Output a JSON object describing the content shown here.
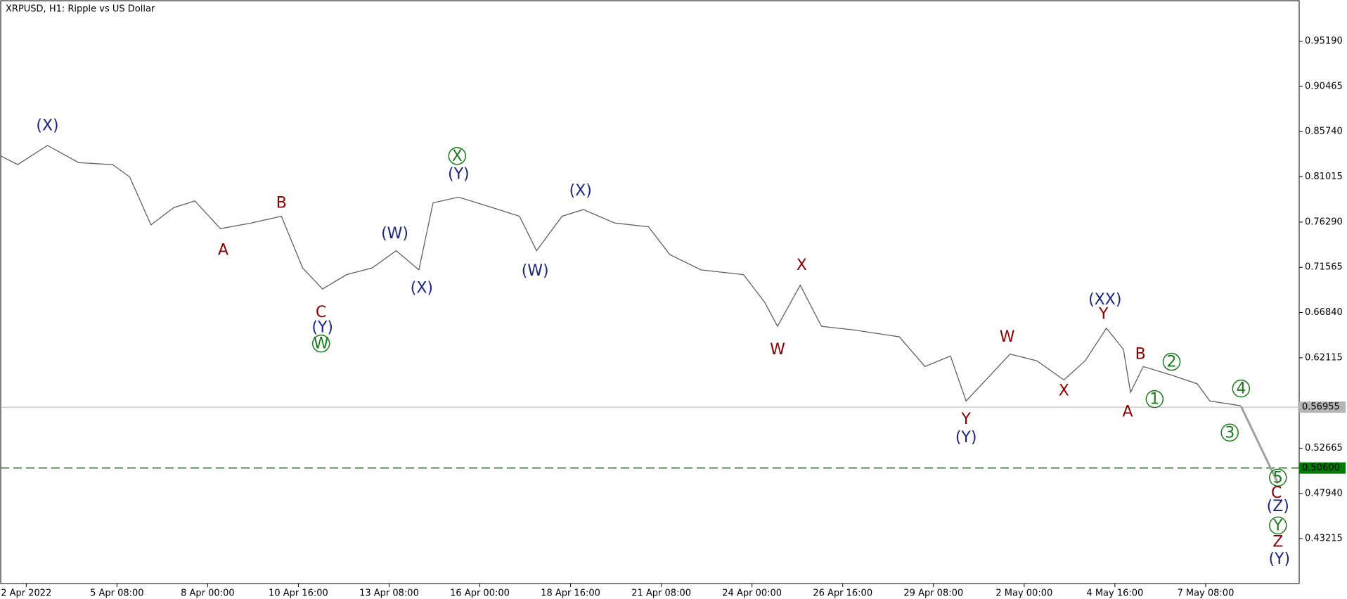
{
  "chart_data": {
    "type": "line",
    "title": "XRPUSD, H1:  Ripple vs US Dollar",
    "x": [
      -18,
      -6,
      15,
      37,
      61,
      73,
      88,
      104,
      119,
      137,
      159,
      180,
      195,
      209,
      226,
      244,
      261,
      277,
      287,
      305,
      329,
      348,
      360,
      378,
      393,
      415,
      439,
      454,
      476,
      506,
      521,
      530,
      546,
      561,
      585,
      616,
      634,
      652,
      663,
      677,
      694,
      713,
      732,
      747,
      762,
      774,
      779,
      788,
      808,
      826,
      835,
      857
    ],
    "values": [
      0.832,
      0.823,
      0.843,
      0.825,
      0.823,
      0.81,
      0.76,
      0.778,
      0.785,
      0.756,
      0.762,
      0.769,
      0.715,
      0.693,
      0.708,
      0.715,
      0.733,
      0.713,
      0.783,
      0.789,
      0.778,
      0.769,
      0.733,
      0.769,
      0.776,
      0.762,
      0.758,
      0.729,
      0.713,
      0.708,
      0.679,
      0.654,
      0.697,
      0.654,
      0.65,
      0.643,
      0.612,
      0.623,
      0.576,
      0.598,
      0.625,
      0.618,
      0.598,
      0.618,
      0.652,
      0.63,
      0.585,
      0.612,
      0.603,
      0.594,
      0.576,
      0.571
    ],
    "color": "#606060",
    "projection": {
      "x": [
        857,
        883
      ],
      "values": [
        0.5704,
        0.49
      ],
      "color": "#a0a0a0"
    },
    "xlim": [
      -18,
      898
    ],
    "ylim": [
      0.3853,
      0.9942
    ],
    "xticks": [
      {
        "value": 0,
        "label": "2 Apr 2022"
      },
      {
        "value": 64,
        "label": "5 Apr 08:00"
      },
      {
        "value": 128,
        "label": "8 Apr 00:00"
      },
      {
        "value": 192,
        "label": "10 Apr 16:00"
      },
      {
        "value": 256,
        "label": "13 Apr 08:00"
      },
      {
        "value": 320,
        "label": "16 Apr 00:00"
      },
      {
        "value": 384,
        "label": "18 Apr 16:00"
      },
      {
        "value": 448,
        "label": "21 Apr 08:00"
      },
      {
        "value": 512,
        "label": "24 Apr 00:00"
      },
      {
        "value": 576,
        "label": "26 Apr 16:00"
      },
      {
        "value": 640,
        "label": "29 Apr 08:00"
      },
      {
        "value": 704,
        "label": "2 May 00:00"
      },
      {
        "value": 768,
        "label": "4 May 16:00"
      },
      {
        "value": 832,
        "label": "7 May 08:00"
      }
    ],
    "yticks": [
      {
        "value": 0.9519,
        "label": "0.95190"
      },
      {
        "value": 0.90465,
        "label": "0.90465"
      },
      {
        "value": 0.8574,
        "label": "0.85740"
      },
      {
        "value": 0.81015,
        "label": "0.81015"
      },
      {
        "value": 0.7629,
        "label": "0.76290"
      },
      {
        "value": 0.71565,
        "label": "0.71565"
      },
      {
        "value": 0.6684,
        "label": "0.66840"
      },
      {
        "value": 0.62115,
        "label": "0.62115"
      },
      {
        "value": 0.52665,
        "label": "0.52665"
      },
      {
        "value": 0.4794,
        "label": "0.47940"
      },
      {
        "value": 0.43215,
        "label": "0.43215"
      }
    ],
    "hlines": [
      {
        "value": 0.56955,
        "label": "0.56955",
        "color": "#b4b4b4",
        "dashed": false
      },
      {
        "value": 0.506,
        "label": "0.50600",
        "color": "#007a00",
        "dashed": true
      }
    ],
    "annotations": [
      {
        "text": "(X)",
        "x": 15,
        "y": 0.864,
        "color": "#1a237e",
        "circled": false
      },
      {
        "text": "B",
        "x": 180,
        "y": 0.783,
        "color": "#8b0000",
        "circled": false
      },
      {
        "text": "A",
        "x": 139,
        "y": 0.734,
        "color": "#8b0000",
        "circled": false
      },
      {
        "text": "C",
        "x": 208,
        "y": 0.669,
        "color": "#8b0000",
        "circled": false
      },
      {
        "text": "(Y)",
        "x": 209,
        "y": 0.653,
        "color": "#1a237e",
        "circled": false
      },
      {
        "text": "W",
        "x": 208,
        "y": 0.636,
        "color": "#1b7a1b",
        "circled": true
      },
      {
        "text": "(W)",
        "x": 260,
        "y": 0.751,
        "color": "#1a237e",
        "circled": false
      },
      {
        "text": "(X)",
        "x": 279,
        "y": 0.694,
        "color": "#1a237e",
        "circled": false
      },
      {
        "text": "X",
        "x": 304,
        "y": 0.832,
        "color": "#1b7a1b",
        "circled": true
      },
      {
        "text": "(Y)",
        "x": 305,
        "y": 0.813,
        "color": "#1a237e",
        "circled": false
      },
      {
        "text": "(X)",
        "x": 391,
        "y": 0.796,
        "color": "#1a237e",
        "circled": false
      },
      {
        "text": "(W)",
        "x": 359,
        "y": 0.712,
        "color": "#1a237e",
        "circled": false
      },
      {
        "text": "X",
        "x": 547,
        "y": 0.718,
        "color": "#8b0000",
        "circled": false
      },
      {
        "text": "W",
        "x": 530,
        "y": 0.63,
        "color": "#8b0000",
        "circled": false
      },
      {
        "text": "Y",
        "x": 663,
        "y": 0.557,
        "color": "#8b0000",
        "circled": false
      },
      {
        "text": "(Y)",
        "x": 663,
        "y": 0.538,
        "color": "#1a237e",
        "circled": false
      },
      {
        "text": "W",
        "x": 692,
        "y": 0.643,
        "color": "#8b0000",
        "circled": false
      },
      {
        "text": "X",
        "x": 732,
        "y": 0.587,
        "color": "#8b0000",
        "circled": false
      },
      {
        "text": "(XX)",
        "x": 761,
        "y": 0.682,
        "color": "#1a237e",
        "circled": false
      },
      {
        "text": "Y",
        "x": 760,
        "y": 0.667,
        "color": "#8b0000",
        "circled": false
      },
      {
        "text": "B",
        "x": 786,
        "y": 0.625,
        "color": "#8b0000",
        "circled": false
      },
      {
        "text": "A",
        "x": 777,
        "y": 0.565,
        "color": "#8b0000",
        "circled": false
      },
      {
        "text": "2",
        "x": 808,
        "y": 0.617,
        "color": "#1b7a1b",
        "circled": true
      },
      {
        "text": "1",
        "x": 796,
        "y": 0.578,
        "color": "#1b7a1b",
        "circled": true
      },
      {
        "text": "4",
        "x": 857,
        "y": 0.589,
        "color": "#1b7a1b",
        "circled": true
      },
      {
        "text": "3",
        "x": 849,
        "y": 0.543,
        "color": "#1b7a1b",
        "circled": true
      },
      {
        "text": "5",
        "x": 883,
        "y": 0.496,
        "color": "#1b7a1b",
        "circled": true
      },
      {
        "text": "C",
        "x": 882,
        "y": 0.48,
        "color": "#8b0000",
        "circled": false
      },
      {
        "text": "(Z)",
        "x": 883,
        "y": 0.466,
        "color": "#1a237e",
        "circled": false
      },
      {
        "text": "Y",
        "x": 883,
        "y": 0.446,
        "color": "#1b7a1b",
        "circled": true
      },
      {
        "text": "Z",
        "x": 883,
        "y": 0.429,
        "color": "#8b0000",
        "circled": false
      },
      {
        "text": "(Y)",
        "x": 884,
        "y": 0.411,
        "color": "#1a237e",
        "circled": false
      }
    ]
  }
}
